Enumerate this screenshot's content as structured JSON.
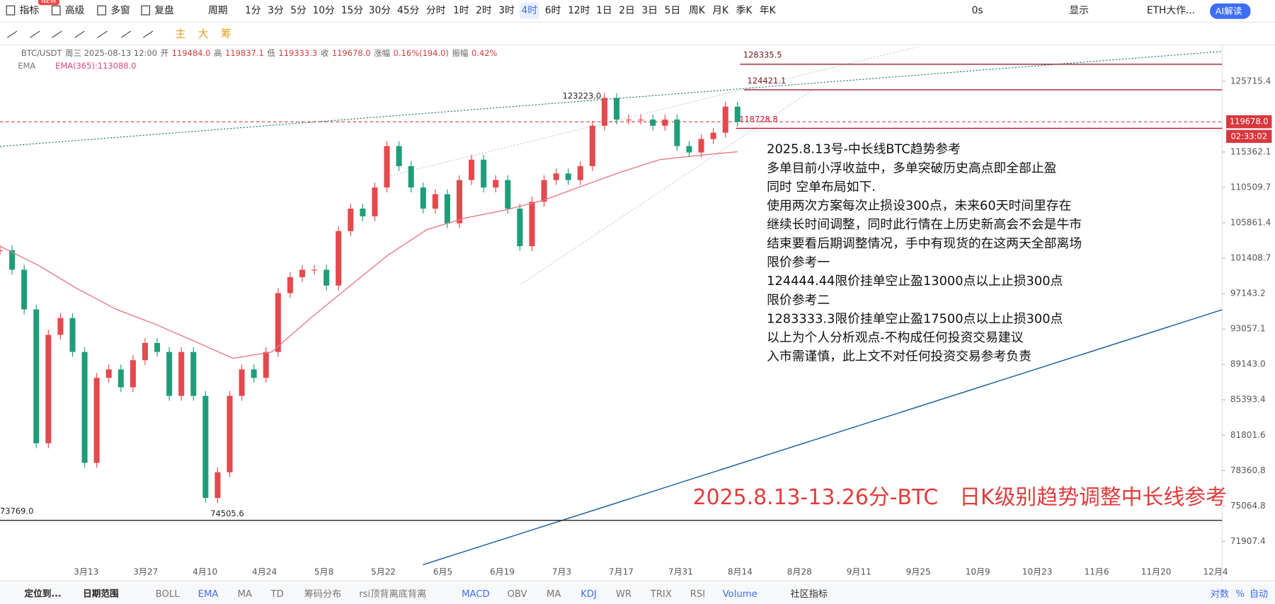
{
  "toolbar": {
    "left": [
      "指标",
      "高级",
      "多窗",
      "复盘"
    ],
    "badge": "NEW",
    "period": "周期",
    "intervals": [
      "1分",
      "3分",
      "5分",
      "10分",
      "15分",
      "30分",
      "45分",
      "分时",
      "1时",
      "2时",
      "3时",
      "4时",
      "6时",
      "12时",
      "1日",
      "2日",
      "3日",
      "5日",
      "周K",
      "月K",
      "季K",
      "年K"
    ],
    "active": "4时",
    "right": [
      "0s",
      "显示",
      "ETH大作..."
    ],
    "ai": "AI解读"
  },
  "tools": [
    "主",
    "大",
    "筹"
  ],
  "info": [
    "BTC/USDT",
    "周三 2025-08-13 12:00",
    "开",
    "119484.0",
    "高",
    "119837.1",
    "低",
    "119333.3",
    "收",
    "119678.0",
    "涨幅",
    "0.16%(194.0)",
    "振幅",
    "0.42%"
  ],
  "ema_info": [
    "EMA",
    "EMA(365):113088.0"
  ],
  "chart_data": {
    "type": "candlestick",
    "log_scale": true,
    "ylim": [
      69000,
      131000
    ],
    "yticks": [
      125715.4,
      115362.1,
      110509.7,
      105861.4,
      101408.7,
      97143.2,
      93057.1,
      {
        "value": 89143,
        "label": "89143.0"
      },
      85393.4,
      81801.6,
      78360.8,
      75064.8,
      71907.4
    ],
    "xticks": [
      "3月13",
      "3月27",
      "4月10",
      "4月24",
      "5月8",
      "5月22",
      "6月5",
      "6月19",
      "7月3",
      "7月17",
      "7月31",
      "8月14",
      "8月28",
      "9月11",
      "9月25",
      "10月9",
      "10月23",
      "11月6",
      "11月20",
      "12月4"
    ],
    "series": [
      {
        "name": "BTC/USDT",
        "up_color": "#e5484d",
        "down_color": "#1f9d7a",
        "values": [
          102400,
          100000,
          95300,
          81000,
          92400,
          94300,
          90500,
          79100,
          87700,
          88600,
          86700,
          89600,
          91500,
          90500,
          85800,
          90500,
          85800,
          75800,
          78200,
          85800,
          88600,
          87700,
          90500,
          97200,
          99100,
          100000,
          100000,
          98100,
          104800,
          107700,
          106700,
          110500,
          116200,
          113400,
          110500,
          107700,
          109600,
          105800,
          111500,
          114300,
          110500,
          111500,
          107700,
          102900,
          108600,
          111500,
          112400,
          111500,
          113400,
          119100,
          123200,
          120000,
          120000,
          120000,
          119100,
          120000,
          116200,
          115300,
          117200,
          118100,
          121900,
          119678
        ]
      },
      {
        "name": "EMA(365)",
        "color": "#e57a86",
        "values": [
          102900,
          100500,
          97700,
          95300,
          93600,
          91700,
          89800,
          90500,
          94300,
          98000,
          101800,
          105000,
          106500,
          107500,
          108800,
          110700,
          112600,
          114300,
          114900,
          115400
        ]
      }
    ],
    "levels": [
      {
        "value": 128335.5,
        "color": "#a01c2c"
      },
      {
        "value": 124421.1,
        "color": "#a01c2c"
      },
      {
        "value": 118728.8,
        "color": "#c8102e"
      },
      {
        "value": 73769,
        "label": "73769.0",
        "color": "#222"
      }
    ],
    "high": {
      "value": 123223,
      "label": "123223.0"
    },
    "low": 74505.6,
    "last_price": {
      "value": 119678,
      "label": "119678.0"
    },
    "countdown": "02:33:02",
    "notes": [
      "2025.8.13号-中长线BTC趋势参考",
      "多单目前小浮收益中，多单突破历史高点即全部止盈",
      "同时 空单布局如下.",
      "使用两次方案每次止损设300点，未来60天时间里存在",
      "继续长时间调整，同时此行情在上历史新高会不会是牛市",
      "结束要看后期调整情况，手中有现货的在这两天全部离场",
      "限价参考一",
      "124444.44限价挂单空止盈13000点以上止损300点",
      "限价参考二",
      "1283333.3限价挂单空止盈17500点以上止损300点",
      "以上为个人分析观点-不构成任何投资交易建议",
      "入市需谨慎，此上文不对任何投资交易参考负责"
    ],
    "headline": "2025.8.13-13.26分-BTC　日K级别趋势调整中长线参考"
  },
  "bottom": {
    "left": [
      "定位到...",
      "日期范围"
    ],
    "indicators": [
      "BOLL",
      "EMA",
      "MA",
      "TD",
      "筹码分布",
      "rsi顶背离底背离"
    ],
    "sub": [
      "MACD",
      "OBV",
      "MA",
      "KDJ",
      "WR",
      "TRIX",
      "RSI",
      "Volume"
    ],
    "community": "社区指标",
    "right": [
      "对数",
      "%",
      "自动"
    ]
  }
}
